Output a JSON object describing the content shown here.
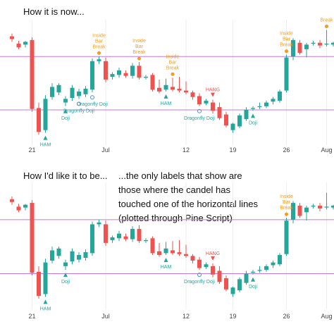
{
  "captions": {
    "top": "How it is now...",
    "bottom_left": "How I'd like it to be...",
    "bottom_right": "...the only labels that show are\nthose where the candel has\ntouched one of the horizontal lines\n(plotted through Pine Script)"
  },
  "colors": {
    "up": "#26a69a",
    "down": "#ef5350",
    "hline": "#c678dd",
    "grid": "#eeeeee",
    "bull_label": "#26a69a",
    "bear_label": "#ef5350",
    "break_label": "#f59c1a",
    "doji_label": "#26a69a"
  },
  "chart_data": [
    {
      "type": "candlestick",
      "title": "",
      "x_ticks": [
        "21",
        "Jul",
        "12",
        "19",
        "26",
        "Aug"
      ],
      "horizontal_lines": [
        26.9,
        21.1
      ],
      "ylim": [
        17.5,
        30.6
      ],
      "candles": [
        {
          "o": 29.1,
          "h": 29.4,
          "c": 28.8,
          "l": 28.5
        },
        {
          "o": 28.3,
          "h": 28.6,
          "c": 27.9,
          "l": 27.7
        },
        {
          "o": 28.2,
          "h": 28.6,
          "c": 28.5,
          "l": 27.9
        },
        {
          "o": 28.7,
          "h": 29.0,
          "c": 21.2,
          "l": 20.9
        },
        {
          "o": 21.3,
          "h": 21.9,
          "c": 18.7,
          "l": 18.4
        },
        {
          "o": 18.9,
          "h": 22.7,
          "c": 22.3,
          "l": 18.6
        },
        {
          "o": 22.5,
          "h": 24.0,
          "c": 23.6,
          "l": 22.2
        },
        {
          "o": 23.0,
          "h": 24.0,
          "c": 23.8,
          "l": 22.7
        },
        {
          "o": 21.9,
          "h": 22.6,
          "c": 22.3,
          "l": 21.5
        },
        {
          "o": 22.4,
          "h": 23.8,
          "c": 23.5,
          "l": 22.1
        },
        {
          "o": 22.6,
          "h": 23.4,
          "c": 23.1,
          "l": 22.3
        },
        {
          "o": 22.8,
          "h": 23.7,
          "c": 23.4,
          "l": 22.5
        },
        {
          "o": 23.3,
          "h": 26.7,
          "c": 26.4,
          "l": 23.0
        },
        {
          "o": 26.4,
          "h": 26.9,
          "c": 26.6,
          "l": 26.1
        },
        {
          "o": 26.4,
          "h": 26.8,
          "c": 24.4,
          "l": 24.1
        },
        {
          "o": 24.7,
          "h": 25.2,
          "c": 25.0,
          "l": 24.4
        },
        {
          "o": 24.9,
          "h": 25.7,
          "c": 25.4,
          "l": 24.6
        },
        {
          "o": 25.1,
          "h": 25.4,
          "c": 24.8,
          "l": 24.6
        },
        {
          "o": 24.8,
          "h": 26.2,
          "c": 25.9,
          "l": 24.5
        },
        {
          "o": 25.9,
          "h": 26.3,
          "c": 24.6,
          "l": 24.4
        },
        {
          "o": 24.6,
          "h": 24.9,
          "c": 24.7,
          "l": 24.4
        },
        {
          "o": 24.9,
          "h": 25.1,
          "c": 23.3,
          "l": 23.1
        },
        {
          "o": 23.5,
          "h": 24.4,
          "c": 23.1,
          "l": 22.9
        },
        {
          "o": 23.3,
          "h": 24.5,
          "c": 23.8,
          "l": 23.1
        },
        {
          "o": 23.6,
          "h": 24.6,
          "c": 23.3,
          "l": 23.1
        },
        {
          "o": 23.4,
          "h": 24.7,
          "c": 23.2,
          "l": 23.0
        },
        {
          "o": 23.2,
          "h": 24.2,
          "c": 23.0,
          "l": 22.8
        },
        {
          "o": 23.0,
          "h": 23.2,
          "c": 22.5,
          "l": 22.2
        },
        {
          "o": 22.6,
          "h": 22.9,
          "c": 21.7,
          "l": 21.5
        },
        {
          "o": 21.8,
          "h": 22.3,
          "c": 22.1,
          "l": 21.6
        },
        {
          "o": 21.9,
          "h": 22.2,
          "c": 21.0,
          "l": 20.7
        },
        {
          "o": 21.4,
          "h": 21.9,
          "c": 20.2,
          "l": 20.0
        },
        {
          "o": 20.6,
          "h": 20.9,
          "c": 19.4,
          "l": 19.2
        },
        {
          "o": 18.9,
          "h": 19.7,
          "c": 19.6,
          "l": 18.6
        },
        {
          "o": 19.3,
          "h": 20.7,
          "c": 20.5,
          "l": 19.1
        },
        {
          "o": 20.1,
          "h": 21.4,
          "c": 21.1,
          "l": 19.9
        },
        {
          "o": 21.2,
          "h": 21.5,
          "c": 21.3,
          "l": 21.0
        },
        {
          "o": 21.4,
          "h": 21.9,
          "c": 21.5,
          "l": 21.2
        },
        {
          "o": 21.5,
          "h": 22.1,
          "c": 21.9,
          "l": 21.3
        },
        {
          "o": 22.0,
          "h": 22.5,
          "c": 22.3,
          "l": 21.7
        },
        {
          "o": 22.1,
          "h": 23.3,
          "c": 23.1,
          "l": 21.9
        },
        {
          "o": 23.2,
          "h": 27.1,
          "c": 26.8,
          "l": 23.0
        },
        {
          "o": 26.9,
          "h": 28.9,
          "c": 28.7,
          "l": 26.5
        },
        {
          "o": 28.4,
          "h": 28.7,
          "c": 27.3,
          "l": 27.1
        },
        {
          "o": 27.7,
          "h": 28.4,
          "c": 28.2,
          "l": 26.8
        },
        {
          "o": 28.3,
          "h": 28.6,
          "c": 28.4,
          "l": 28.1
        },
        {
          "o": 28.4,
          "h": 28.7,
          "c": 28.1,
          "l": 27.8
        },
        {
          "o": 28.2,
          "h": 29.8,
          "c": 28.3,
          "l": 28.0
        },
        {
          "o": 28.2,
          "h": 28.5,
          "c": 28.4,
          "l": 28.0
        }
      ],
      "labels": [
        {
          "i": 5,
          "text": "HAM",
          "kind": "bull",
          "pos": "below"
        },
        {
          "i": 8,
          "text": "Doji",
          "kind": "bull",
          "pos": "below"
        },
        {
          "i": 10,
          "text": "Dragonfly Doji",
          "kind": "bull",
          "pos": "below"
        },
        {
          "i": 12,
          "text": "Dragonfly Doji",
          "kind": "bull",
          "pos": "below"
        },
        {
          "i": 13,
          "text": "Inside Bar Break",
          "kind": "break",
          "pos": "above"
        },
        {
          "i": 19,
          "text": "Inside Bar Break",
          "kind": "break",
          "pos": "above"
        },
        {
          "i": 23,
          "text": "HAM",
          "kind": "bull",
          "pos": "below"
        },
        {
          "i": 24,
          "text": "Inside Bar Break",
          "kind": "break",
          "pos": "above"
        },
        {
          "i": 28,
          "text": "Dragonfly Doji",
          "kind": "bull",
          "pos": "below"
        },
        {
          "i": 30,
          "text": "HANG",
          "kind": "bear",
          "pos": "above"
        },
        {
          "i": 36,
          "text": "Doji",
          "kind": "bull",
          "pos": "below"
        },
        {
          "i": 41,
          "text": "Inside Bar Break",
          "kind": "break",
          "pos": "above"
        },
        {
          "i": 47,
          "text": "Break",
          "kind": "break",
          "pos": "above"
        }
      ]
    },
    {
      "type": "candlestick",
      "title": "",
      "x_ticks": [
        "21",
        "Jul",
        "12",
        "19",
        "26",
        "Aug"
      ],
      "horizontal_lines": [
        26.9,
        21.1
      ],
      "ylim": [
        17.5,
        30.6
      ],
      "candles": "same as chart 1",
      "labels": [
        {
          "i": 5,
          "text": "HAM",
          "kind": "bull",
          "pos": "below"
        },
        {
          "i": 8,
          "text": "Doji",
          "kind": "bull",
          "pos": "below"
        },
        {
          "i": 23,
          "text": "HAM",
          "kind": "bull",
          "pos": "below"
        },
        {
          "i": 28,
          "text": "Dragonfly Doji",
          "kind": "bull",
          "pos": "below"
        },
        {
          "i": 30,
          "text": "HANG",
          "kind": "bear",
          "pos": "above"
        },
        {
          "i": 36,
          "text": "Doji",
          "kind": "bull",
          "pos": "below"
        },
        {
          "i": 41,
          "text": "Inside Bar Break",
          "kind": "break",
          "pos": "above"
        }
      ]
    }
  ]
}
